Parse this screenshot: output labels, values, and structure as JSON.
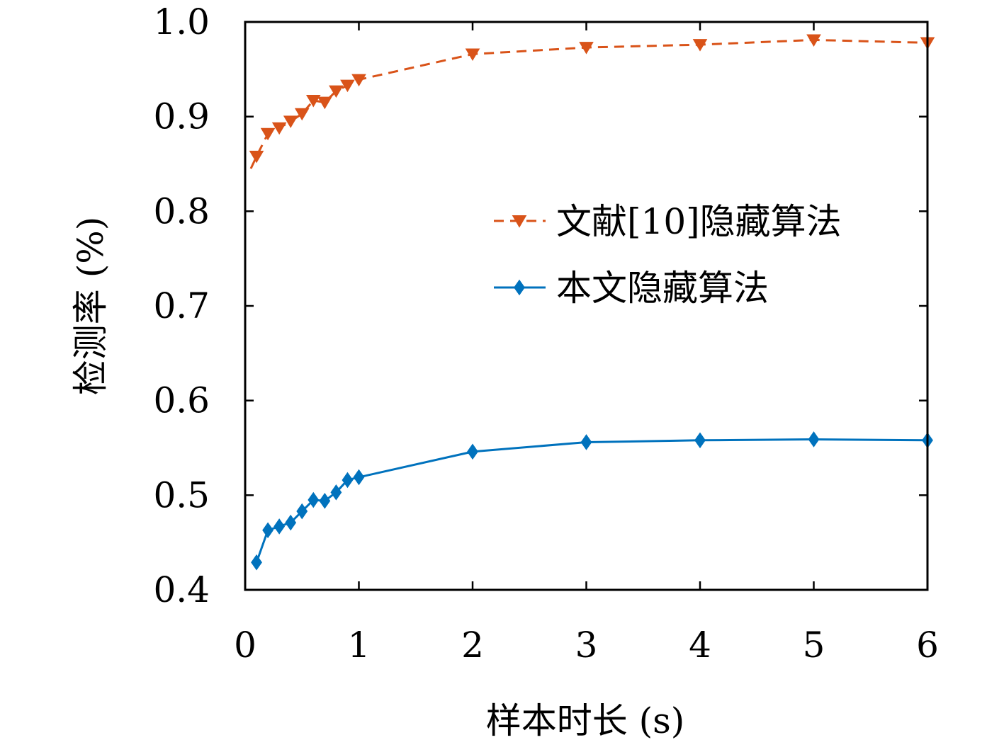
{
  "chart_data": {
    "type": "line",
    "title": "",
    "xlabel": "样本时长 (s)",
    "ylabel": "检测率 (%)",
    "xlim": [
      0,
      6
    ],
    "ylim": [
      0.4,
      1.0
    ],
    "xticks": [
      0,
      1,
      2,
      3,
      4,
      5,
      6
    ],
    "xtick_labels": [
      "0",
      "1",
      "2",
      "3",
      "4",
      "5",
      "6"
    ],
    "yticks": [
      0.4,
      0.5,
      0.6,
      0.7,
      0.8,
      0.9,
      1.0
    ],
    "ytick_labels": [
      "0.4",
      "0.5",
      "0.6",
      "0.7",
      "0.8",
      "0.9",
      "1.0"
    ],
    "grid": false,
    "legend_position": "center-right",
    "series": [
      {
        "name": "文献[10]隐藏算法",
        "color": "#D95319",
        "line_style": "dashed",
        "marker": "down-triangle",
        "x": [
          0.05,
          0.1,
          0.2,
          0.3,
          0.4,
          0.5,
          0.6,
          0.7,
          0.8,
          0.9,
          1,
          2,
          3,
          4,
          5,
          6
        ],
        "y": [
          0.845,
          0.858,
          0.882,
          0.888,
          0.895,
          0.903,
          0.917,
          0.915,
          0.927,
          0.933,
          0.939,
          0.966,
          0.973,
          0.976,
          0.981,
          0.978
        ],
        "marker_count_excludes_first": true
      },
      {
        "name": "本文隐藏算法",
        "color": "#0072BD",
        "line_style": "solid",
        "marker": "diamond",
        "x": [
          0.1,
          0.2,
          0.3,
          0.4,
          0.5,
          0.6,
          0.7,
          0.8,
          0.9,
          1,
          2,
          3,
          4,
          5,
          6
        ],
        "y": [
          0.429,
          0.463,
          0.467,
          0.471,
          0.483,
          0.495,
          0.494,
          0.503,
          0.516,
          0.519,
          0.546,
          0.556,
          0.558,
          0.559,
          0.558
        ]
      }
    ]
  }
}
